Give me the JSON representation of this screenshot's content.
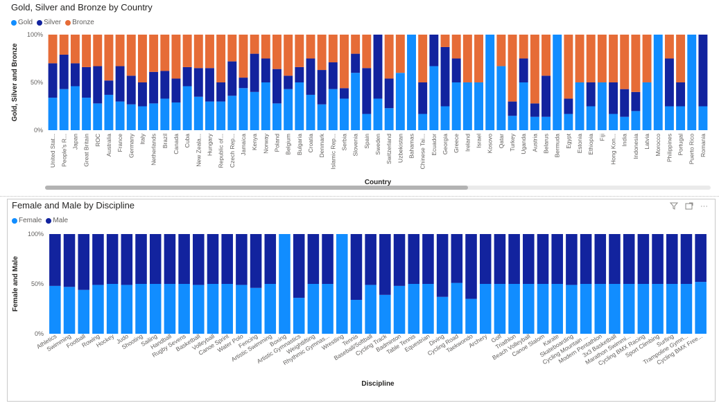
{
  "colors": {
    "gold": "#118DFF",
    "silver": "#12239E",
    "bronze": "#E66C37",
    "female": "#118DFF",
    "male": "#12239E"
  },
  "chart_data": [
    {
      "type": "bar",
      "stacking": "100%",
      "title": "Gold, Silver and Bronze by Country",
      "xlabel": "Country",
      "ylabel": "Gold, Silver and Bronze",
      "ylim": [
        0,
        100
      ],
      "yticks": [
        "0%",
        "50%",
        "100%"
      ],
      "legend_position": "top-left",
      "grid": false,
      "categories": [
        "United Stat...",
        "People's R...",
        "Japan",
        "Great Britain",
        "ROC",
        "Australia",
        "France",
        "Germany",
        "Italy",
        "Netherlands",
        "Brazil",
        "Canada",
        "Cuba",
        "New Zeala...",
        "Hungary",
        "Republic of...",
        "Czech Rep...",
        "Jamaica",
        "Kenya",
        "Norway",
        "Poland",
        "Belgium",
        "Bulgaria",
        "Croatia",
        "Denmark",
        "Islamic Rep...",
        "Serbia",
        "Slovenia",
        "Spain",
        "Sweden",
        "Switzerland",
        "Uzbekistan",
        "Bahamas",
        "Chinese Tai...",
        "Ecuador",
        "Georgia",
        "Greece",
        "Ireland",
        "Israel",
        "Kosovo",
        "Qatar",
        "Turkey",
        "Uganda",
        "Austria",
        "Belarus",
        "Bermuda",
        "Egypt",
        "Estonia",
        "Ethiopia",
        "Fiji",
        "Hong Kon...",
        "India",
        "Indonesia",
        "Latvia",
        "Morocco",
        "Philippines",
        "Portugal",
        "Puerto Rico",
        "Romania"
      ],
      "series": [
        {
          "name": "Gold",
          "values": [
            34,
            43,
            46,
            34,
            28,
            37,
            30,
            27,
            25,
            28,
            33,
            29,
            46,
            35,
            30,
            30,
            36,
            44,
            40,
            50,
            28,
            43,
            50,
            37,
            27,
            43,
            33,
            60,
            17,
            33,
            23,
            60,
            100,
            17,
            67,
            25,
            50,
            50,
            50,
            100,
            67,
            15,
            50,
            14,
            14,
            100,
            17,
            50,
            25,
            50,
            17,
            14,
            20,
            50,
            100,
            25,
            25,
            100,
            25
          ]
        },
        {
          "name": "Silver",
          "values": [
            36,
            36,
            24,
            32,
            39,
            15,
            37,
            30,
            25,
            33,
            29,
            25,
            20,
            30,
            35,
            20,
            36,
            11,
            40,
            25,
            36,
            14,
            16,
            38,
            36,
            28,
            11,
            20,
            48,
            67,
            31,
            0,
            0,
            33,
            33,
            62,
            25,
            0,
            0,
            0,
            0,
            15,
            25,
            14,
            43,
            0,
            16,
            0,
            25,
            0,
            33,
            29,
            20,
            0,
            0,
            50,
            25,
            0,
            75
          ]
        },
        {
          "name": "Bronze",
          "values": [
            30,
            21,
            30,
            34,
            33,
            48,
            33,
            43,
            50,
            39,
            38,
            46,
            34,
            35,
            35,
            50,
            28,
            45,
            20,
            25,
            36,
            43,
            34,
            25,
            37,
            29,
            56,
            20,
            35,
            0,
            46,
            40,
            0,
            50,
            0,
            13,
            25,
            50,
            50,
            0,
            33,
            70,
            25,
            72,
            43,
            0,
            67,
            50,
            50,
            50,
            50,
            57,
            60,
            50,
            0,
            25,
            50,
            0,
            0
          ]
        }
      ]
    },
    {
      "type": "bar",
      "stacking": "100%",
      "title": "Female and Male by Discipline",
      "xlabel": "Discipline",
      "ylabel": "Female and Male",
      "ylim": [
        0,
        100
      ],
      "yticks": [
        "0%",
        "50%",
        "100%"
      ],
      "legend_position": "top-left",
      "grid": false,
      "categories": [
        "Athletics",
        "Swimming",
        "Football",
        "Rowing",
        "Hockey",
        "Judo",
        "Shooting",
        "Sailing",
        "Handball",
        "Rugby Sevens",
        "Basketball",
        "Volleyball",
        "Canoe Sprint",
        "Water Polo",
        "Fencing",
        "Artistic Swimming",
        "Boxing",
        "Artistic Gymnastics",
        "Weightlifting",
        "Rhythmic Gymnas...",
        "Wrestling",
        "Tennis",
        "Baseball/Softball",
        "Cycling Track",
        "Badminton",
        "Table Tennis",
        "Equestrian",
        "Diving",
        "Cycling Road",
        "Taekwondo",
        "Archery",
        "Golf",
        "Triathlon",
        "Beach Volleyball",
        "Canoe Slalom",
        "Karate",
        "Skateboarding",
        "Cycling Mountain ...",
        "Modern Pentathlon",
        "3x3 Basketball",
        "Marathon Swimmi...",
        "Cycling BMX Racing",
        "Sport Climbing",
        "Surfing",
        "Trampoline Gymn...",
        "Cycling BMX Free..."
      ],
      "series": [
        {
          "name": "Female",
          "values": [
            48,
            47,
            44,
            49,
            50,
            49,
            50,
            50,
            50,
            50,
            49,
            50,
            50,
            49,
            46,
            50,
            100,
            36,
            50,
            50,
            100,
            34,
            49,
            39,
            48,
            50,
            50,
            37,
            51,
            35,
            50,
            50,
            50,
            50,
            50,
            50,
            49,
            50,
            50,
            50,
            50,
            50,
            50,
            50,
            50,
            52
          ]
        },
        {
          "name": "Male",
          "values": [
            52,
            53,
            56,
            51,
            50,
            51,
            50,
            50,
            50,
            50,
            51,
            50,
            50,
            51,
            54,
            50,
            0,
            64,
            50,
            50,
            0,
            66,
            51,
            61,
            52,
            50,
            50,
            63,
            49,
            65,
            50,
            50,
            50,
            50,
            50,
            50,
            51,
            50,
            50,
            50,
            50,
            50,
            50,
            50,
            50,
            48
          ]
        }
      ]
    }
  ],
  "toolbar": {
    "filter_icon": "filter-icon",
    "focus_icon": "focus-mode-icon",
    "more_icon": "more-options-icon",
    "more_label": "···"
  }
}
